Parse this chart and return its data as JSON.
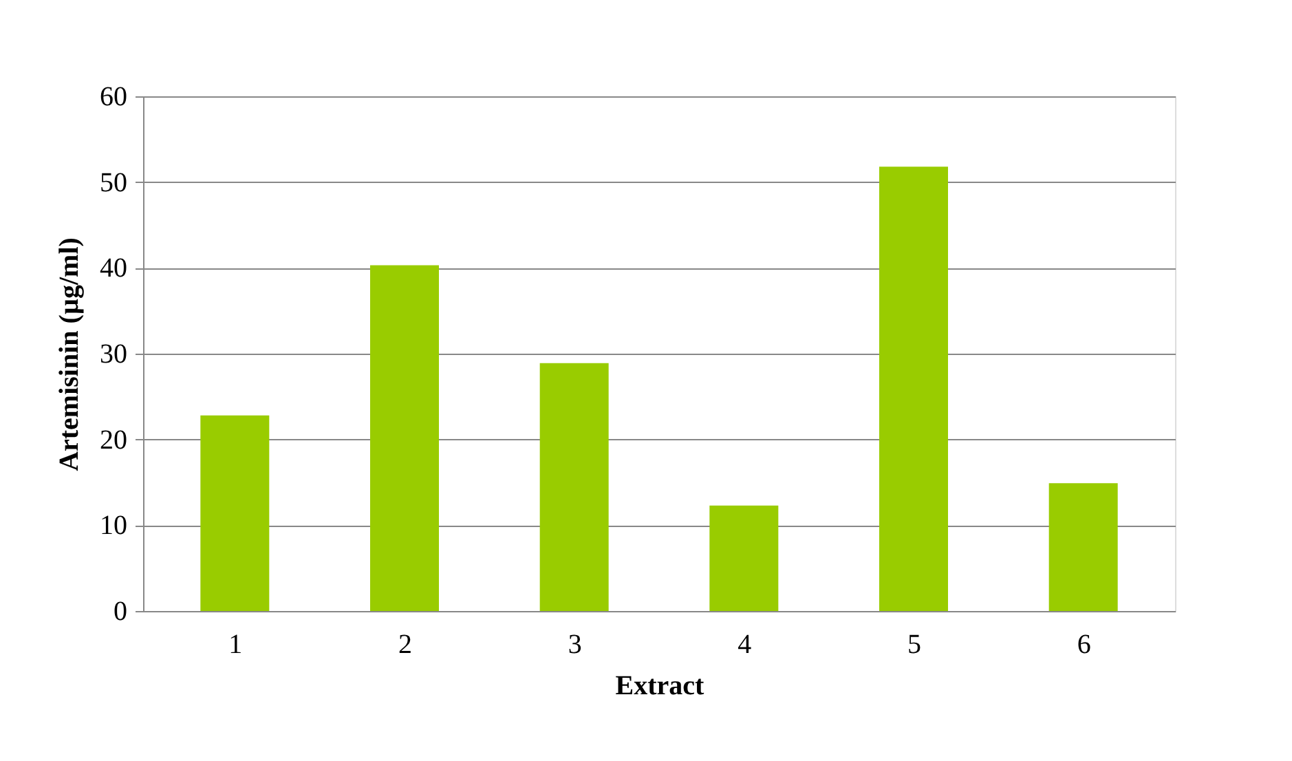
{
  "chart_data": {
    "type": "bar",
    "xlabel": "Extract",
    "ylabel": "Artemisinin (µg/ml)",
    "categories": [
      "1",
      "2",
      "3",
      "4",
      "5",
      "6"
    ],
    "values": [
      22.8,
      40.3,
      28.9,
      12.3,
      51.8,
      14.9
    ],
    "color": "#99cc00",
    "ylim": [
      0,
      60
    ],
    "yticks": [
      0,
      10,
      20,
      30,
      40,
      50,
      60
    ],
    "grid": "y"
  }
}
